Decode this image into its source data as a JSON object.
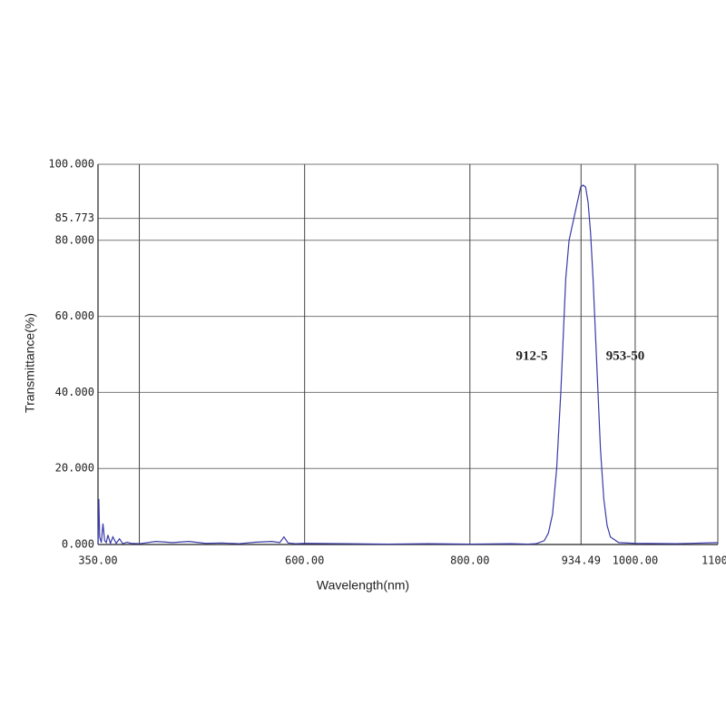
{
  "chart_data": {
    "type": "line",
    "x_label": "Wavelength(nm)",
    "y_label": "Transmittance(%)",
    "annotations": [
      "912-5",
      "953-50"
    ],
    "xlim": [
      350,
      1100
    ],
    "ylim": [
      0,
      100
    ],
    "xticks": [
      {
        "value": 350,
        "label": "350.00"
      },
      {
        "value": 400,
        "label": null
      },
      {
        "value": 600,
        "label": "600.00"
      },
      {
        "value": 800,
        "label": "800.00"
      },
      {
        "value": 934.49,
        "label": "934.49"
      },
      {
        "value": 1000,
        "label": "1000.00"
      },
      {
        "value": 1100,
        "label": "1100."
      }
    ],
    "yticks": [
      {
        "value": 0,
        "label": "0.000"
      },
      {
        "value": 20,
        "label": "20.000"
      },
      {
        "value": 40,
        "label": "40.000"
      },
      {
        "value": 60,
        "label": "60.000"
      },
      {
        "value": 80,
        "label": "80.000"
      },
      {
        "value": 85.773,
        "label": "85.773"
      },
      {
        "value": 100,
        "label": "100.000"
      }
    ],
    "grid": true,
    "series": [
      {
        "color": "#3a3aa8",
        "x": [
          350,
          351,
          352,
          354,
          356,
          358,
          360,
          362,
          365,
          368,
          372,
          376,
          380,
          385,
          390,
          400,
          420,
          440,
          460,
          480,
          500,
          520,
          540,
          560,
          570,
          575,
          580,
          590,
          600,
          650,
          700,
          750,
          800,
          850,
          870,
          880,
          890,
          895,
          900,
          905,
          910,
          913,
          916,
          920,
          925,
          930,
          934,
          937,
          940,
          943,
          946,
          949,
          952,
          955,
          958,
          962,
          966,
          970,
          980,
          1000,
          1050,
          1100
        ],
        "values": [
          0,
          12,
          2,
          0.5,
          5.5,
          1,
          0.5,
          2.5,
          0.3,
          2,
          0.3,
          1.5,
          0.2,
          0.6,
          0.3,
          0.2,
          0.8,
          0.5,
          0.8,
          0.3,
          0.4,
          0.2,
          0.6,
          0.8,
          0.5,
          2,
          0.4,
          0.2,
          0.3,
          0.2,
          0.1,
          0.2,
          0.1,
          0.2,
          0.1,
          0.2,
          1,
          3,
          8,
          20,
          40,
          55,
          70,
          80,
          85,
          90,
          94,
          94.5,
          94,
          90,
          82,
          70,
          55,
          40,
          25,
          12,
          5,
          2,
          0.5,
          0.3,
          0.2,
          0.5
        ]
      }
    ]
  }
}
